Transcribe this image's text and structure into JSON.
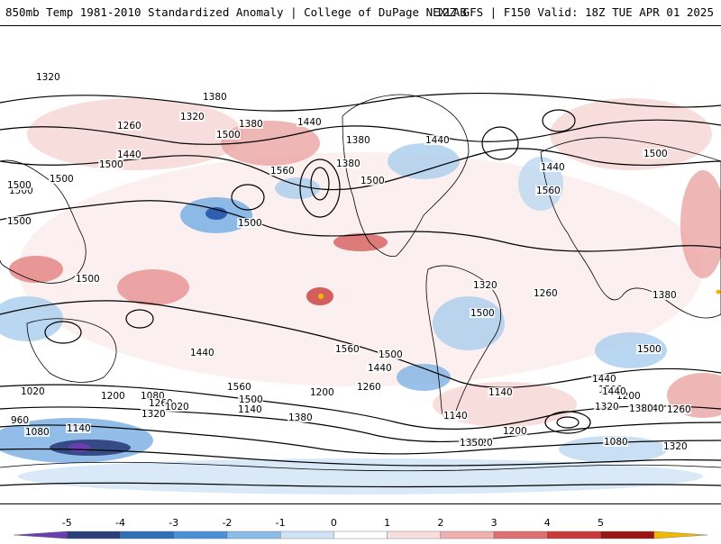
{
  "header": {
    "title": "850mb Temp 1981-2010 Standardized Anomaly | College of DuPage NEXLAB",
    "run_info": "12Z GFS | F150 Valid: 18Z TUE APR 01 2025"
  },
  "contour_labels": [
    "1320",
    "1380",
    "1260",
    "1320",
    "1380",
    "1440",
    "1500",
    "1560",
    "1500",
    "1440",
    "1500",
    "1380",
    "1440",
    "1380",
    "1500",
    "1560",
    "1440",
    "1500",
    "1500",
    "1500",
    "1500",
    "1500",
    "1500",
    "1560",
    "1500",
    "1440",
    "1560",
    "1500",
    "1440",
    "1500",
    "1320",
    "1260",
    "1380",
    "1500",
    "1440",
    "1500",
    "1200",
    "1320",
    "1260",
    "1140",
    "1020",
    "960",
    "1080",
    "1260",
    "1320",
    "1200",
    "1140",
    "1080",
    "1020",
    "1140",
    "1200",
    "1260",
    "1380",
    "1140",
    "1020",
    "1200",
    "1320",
    "1080",
    "1140",
    "1350",
    "1440",
    "1380"
  ],
  "colorbar": {
    "ticks": [
      "-5",
      "-4",
      "-3",
      "-2",
      "-1",
      "0",
      "1",
      "2",
      "3",
      "4",
      "5"
    ],
    "colors": [
      "#6a3db0",
      "#2c3e7a",
      "#2f6fb8",
      "#4a90d9",
      "#8cbde8",
      "#cfe3f5",
      "#ffffff",
      "#f8dede",
      "#efb0b0",
      "#e07070",
      "#c83a3a",
      "#9a1515",
      "#f2b800"
    ]
  }
}
